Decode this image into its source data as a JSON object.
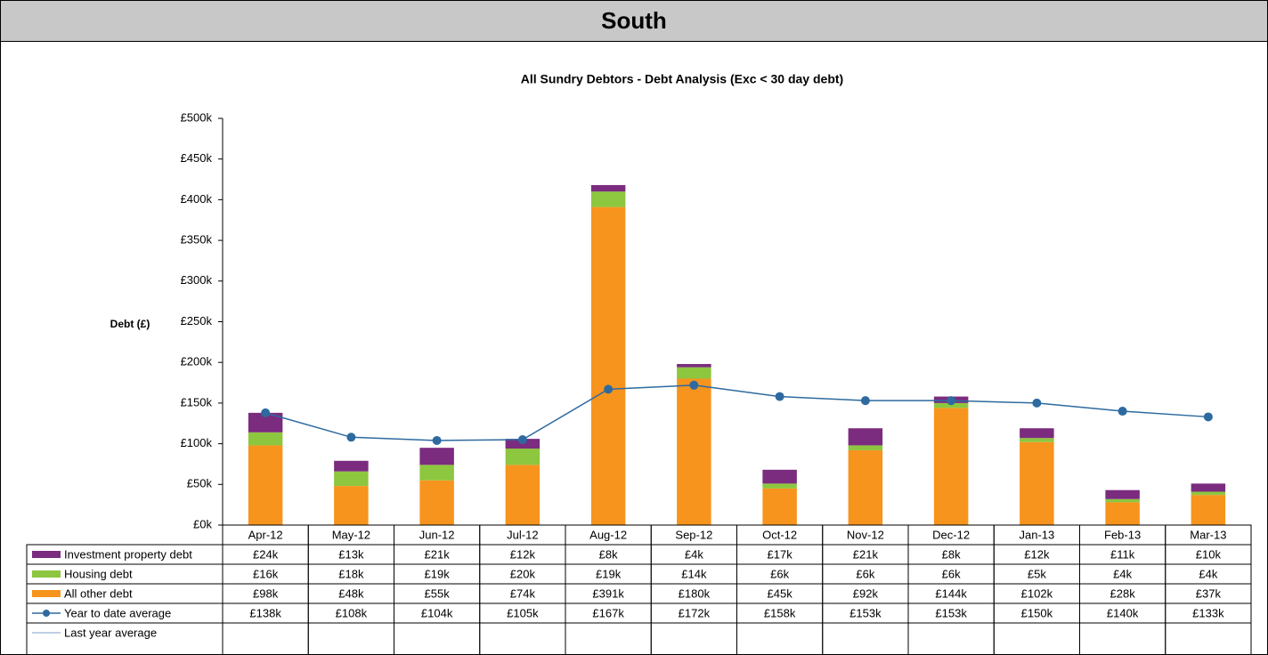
{
  "header": {
    "title": "South"
  },
  "chart_data": {
    "type": "bar",
    "title": "All Sundry Debtors - Debt Analysis (Exc < 30 day debt)",
    "y_label": "Debt (£)",
    "categories": [
      "Apr-12",
      "May-12",
      "Jun-12",
      "Jul-12",
      "Aug-12",
      "Sep-12",
      "Oct-12",
      "Nov-12",
      "Dec-12",
      "Jan-13",
      "Feb-13",
      "Mar-13"
    ],
    "ylim": [
      0,
      500000
    ],
    "yticks": [
      {
        "value": 0,
        "label": "£0k"
      },
      {
        "value": 50000,
        "label": "£50k"
      },
      {
        "value": 100000,
        "label": "£100k"
      },
      {
        "value": 150000,
        "label": "£150k"
      },
      {
        "value": 200000,
        "label": "£200k"
      },
      {
        "value": 250000,
        "label": "£250k"
      },
      {
        "value": 300000,
        "label": "£300k"
      },
      {
        "value": 350000,
        "label": "£350k"
      },
      {
        "value": 400000,
        "label": "£400k"
      },
      {
        "value": 450000,
        "label": "£450k"
      },
      {
        "value": 500000,
        "label": "£500k"
      }
    ],
    "stacked": true,
    "series": [
      {
        "name": "Investment property debt",
        "type": "bar",
        "color": "#7b2c7f",
        "values": [
          24000,
          13000,
          21000,
          12000,
          8000,
          4000,
          17000,
          21000,
          8000,
          12000,
          11000,
          10000
        ],
        "value_labels": [
          "£24k",
          "£13k",
          "£21k",
          "£12k",
          "£8k",
          "£4k",
          "£17k",
          "£21k",
          "£8k",
          "£12k",
          "£11k",
          "£10k"
        ]
      },
      {
        "name": "Housing debt",
        "type": "bar",
        "color": "#8dc63f",
        "values": [
          16000,
          18000,
          19000,
          20000,
          19000,
          14000,
          6000,
          6000,
          6000,
          5000,
          4000,
          4000
        ],
        "value_labels": [
          "£16k",
          "£18k",
          "£19k",
          "£20k",
          "£19k",
          "£14k",
          "£6k",
          "£6k",
          "£6k",
          "£5k",
          "£4k",
          "£4k"
        ]
      },
      {
        "name": "All other debt",
        "type": "bar",
        "color": "#f7941d",
        "values": [
          98000,
          48000,
          55000,
          74000,
          391000,
          180000,
          45000,
          92000,
          144000,
          102000,
          28000,
          37000
        ],
        "value_labels": [
          "£98k",
          "£48k",
          "£55k",
          "£74k",
          "£391k",
          "£180k",
          "£45k",
          "£92k",
          "£144k",
          "£102k",
          "£28k",
          "£37k"
        ]
      },
      {
        "name": "Year to date average",
        "type": "line",
        "color": "#2e6aa0",
        "markers": true,
        "values": [
          138000,
          108000,
          104000,
          105000,
          167000,
          172000,
          158000,
          153000,
          153000,
          150000,
          140000,
          133000
        ],
        "value_labels": [
          "£138k",
          "£108k",
          "£104k",
          "£105k",
          "£167k",
          "£172k",
          "£158k",
          "£153k",
          "£153k",
          "£150k",
          "£140k",
          "£133k"
        ]
      },
      {
        "name": "Last year average",
        "type": "line",
        "color": "#a9bfdc",
        "markers": false,
        "values": [
          null,
          null,
          null,
          null,
          null,
          null,
          null,
          null,
          null,
          null,
          null,
          null
        ]
      }
    ]
  }
}
